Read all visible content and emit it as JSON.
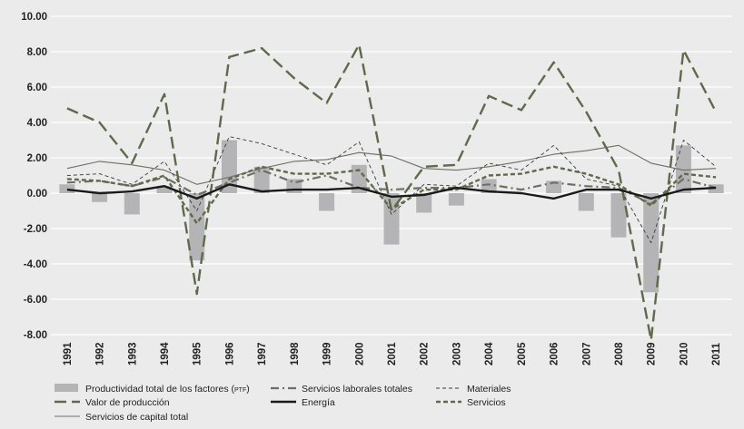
{
  "chart_data": {
    "type": "bar+line",
    "categories": [
      "1991",
      "1992",
      "1993",
      "1994",
      "1995",
      "1996",
      "1997",
      "1998",
      "1999",
      "2000",
      "2001",
      "2002",
      "2003",
      "2004",
      "2005",
      "2006",
      "2007",
      "2008",
      "2009",
      "2010",
      "2011"
    ],
    "ylim": [
      -8,
      10
    ],
    "yticks": [
      "10.00",
      "8.00",
      "6.00",
      "4.00",
      "2.00",
      "0.00",
      "-2.00",
      "-4.00",
      "-6.00",
      "-8.00"
    ],
    "grid": true,
    "colors": {
      "ptf": "#b4b4b6",
      "dark_green": "#5f6a4c",
      "mid_gray_green": "#6e6e66",
      "black": "#1a1a1a",
      "text": "#222222"
    },
    "series": [
      {
        "key": "ptf",
        "name": "Productividad total de los factores (PTF)",
        "style": "bar",
        "values": [
          0.5,
          -0.5,
          -1.2,
          0.4,
          -3.8,
          3.0,
          1.5,
          0.8,
          -1.0,
          1.6,
          -2.9,
          -1.1,
          -0.7,
          0.8,
          0.0,
          0.7,
          -1.0,
          -2.5,
          -5.6,
          2.7,
          0.5
        ]
      },
      {
        "key": "laborales",
        "name": "Servicios laborales totales",
        "style": "dashdot",
        "values": [
          0.6,
          0.7,
          0.4,
          0.9,
          -0.1,
          0.6,
          1.3,
          0.6,
          1.0,
          0.3,
          0.2,
          0.3,
          0.3,
          0.5,
          0.2,
          0.6,
          0.4,
          0.3,
          -0.6,
          0.8,
          0.3
        ]
      },
      {
        "key": "materiales",
        "name": "Materiales",
        "style": "finedash",
        "values": [
          1.0,
          1.1,
          0.5,
          1.8,
          -1.0,
          3.2,
          2.8,
          2.2,
          1.6,
          2.9,
          -1.2,
          0.5,
          0.4,
          1.7,
          1.3,
          2.7,
          0.8,
          0.4,
          -2.8,
          3.0,
          1.5
        ]
      },
      {
        "key": "valor",
        "name": "Valor de producción",
        "style": "longdash",
        "values": [
          4.8,
          4.0,
          1.7,
          5.6,
          -5.7,
          7.7,
          8.2,
          6.5,
          5.1,
          8.4,
          -1.0,
          1.5,
          1.6,
          5.5,
          4.7,
          7.4,
          4.6,
          1.3,
          -8.3,
          8.1,
          4.6
        ]
      },
      {
        "key": "energia",
        "name": "Energía",
        "style": "solid-thick",
        "values": [
          0.2,
          0.0,
          0.1,
          0.4,
          -0.3,
          0.5,
          0.1,
          0.2,
          0.2,
          0.3,
          -0.2,
          -0.1,
          0.3,
          0.1,
          0.0,
          -0.3,
          0.2,
          0.2,
          -0.3,
          0.2,
          0.3
        ]
      },
      {
        "key": "servicios",
        "name": "Servicios",
        "style": "shortdash",
        "values": [
          0.8,
          0.7,
          0.4,
          1.0,
          -1.7,
          0.8,
          1.5,
          1.1,
          1.1,
          1.3,
          -0.9,
          0.2,
          0.2,
          1.0,
          1.1,
          1.5,
          1.1,
          0.5,
          -0.7,
          1.1,
          0.9
        ]
      },
      {
        "key": "capital",
        "name": "Servicios de capital total",
        "style": "solid-thin",
        "values": [
          1.4,
          1.8,
          1.6,
          1.3,
          0.5,
          0.9,
          1.4,
          1.8,
          1.9,
          2.3,
          2.1,
          1.4,
          1.3,
          1.5,
          1.8,
          2.2,
          2.4,
          2.7,
          1.7,
          1.3,
          1.4
        ]
      }
    ],
    "legend": [
      {
        "key": "ptf",
        "label_main": "Productividad total de los factores (",
        "label_small": "PTF",
        "label_end": ")"
      },
      {
        "key": "laborales",
        "label_main": "Servicios laborales totales"
      },
      {
        "key": "materiales",
        "label_main": "Materiales"
      },
      {
        "key": "valor",
        "label_main": "Valor de producción"
      },
      {
        "key": "energia",
        "label_main": "Energía"
      },
      {
        "key": "servicios",
        "label_main": "Servicios"
      },
      {
        "key": "capital",
        "label_main": "Servicios de capital total"
      }
    ]
  }
}
